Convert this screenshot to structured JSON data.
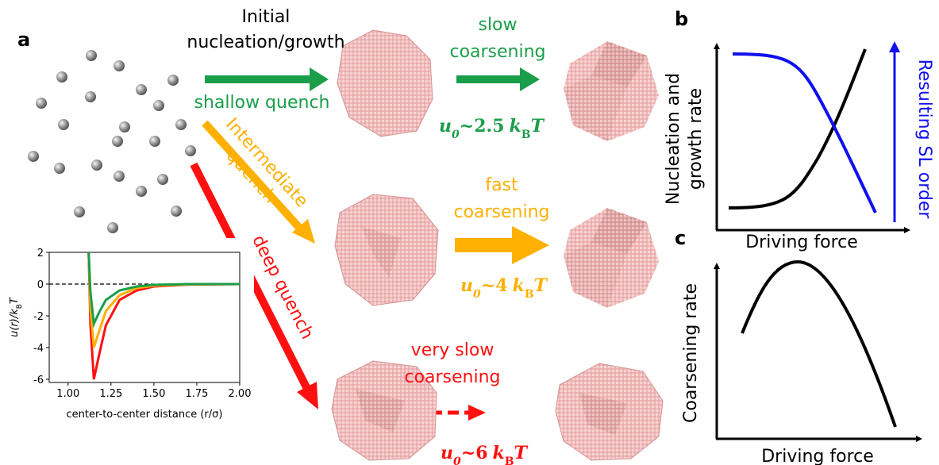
{
  "panel_labels": [
    "a",
    "b",
    "c"
  ],
  "panel_a": {
    "initial": [
      "Initial",
      "nucleation/growth"
    ],
    "quenches": {
      "shallow": "shallow quench",
      "intermediate": [
        "Intermediate",
        "quench"
      ],
      "deep": "deep quench"
    },
    "coarsening": {
      "slow": [
        "slow",
        "coarsening"
      ],
      "fast": [
        "fast",
        "coarsening"
      ],
      "very_slow": [
        "very slow",
        "coarsening"
      ]
    },
    "energy": {
      "symbol": "u",
      "symbol_sub": "0",
      "tilde": "~",
      "k": "k",
      "k_sub": "B",
      "T": "T",
      "values": [
        2.5,
        4,
        6
      ]
    },
    "inset": {
      "type": "line",
      "ylabel": [
        "u(r)/k",
        "B",
        "T"
      ],
      "xlabel": "center-to-center distance (r/σ)",
      "x": [
        1.12,
        1.13,
        1.15,
        1.18,
        1.22,
        1.3,
        1.4,
        1.5,
        1.7,
        2.0
      ],
      "series": [
        {
          "color": "#ff1010",
          "values": [
            2,
            -2.5,
            -6,
            -4.5,
            -2.6,
            -1.0,
            -0.4,
            -0.15,
            -0.03,
            0
          ]
        },
        {
          "color": "#ffb000",
          "values": [
            2,
            -1.5,
            -4,
            -3.0,
            -1.7,
            -0.7,
            -0.25,
            -0.1,
            -0.02,
            0
          ]
        },
        {
          "color": "#1a9e4a",
          "values": [
            2,
            -0.5,
            -2.5,
            -1.8,
            -1.0,
            -0.4,
            -0.15,
            -0.05,
            0,
            0
          ]
        }
      ],
      "reference_line": 0,
      "xlim": [
        0.89,
        2.0
      ],
      "ylim": [
        -6.2,
        2
      ],
      "xticks": [
        {
          "value": 1,
          "label": "1.00"
        },
        {
          "value": 1.25,
          "label": "1.25"
        },
        {
          "value": 1.5,
          "label": "1.50"
        },
        {
          "value": 1.75,
          "label": "1.75"
        },
        {
          "value": 2,
          "label": "2.00"
        }
      ],
      "yticks": [
        -6,
        -4,
        -2,
        0,
        2
      ]
    }
  },
  "panel_b": {
    "ylabel": [
      "Nucleation and",
      "growth rate"
    ],
    "y2label": "Resulting SL order",
    "xlabel": "Driving force"
  },
  "panel_c": {
    "ylabel": "Coarsening rate",
    "xlabel": "Driving force"
  }
}
